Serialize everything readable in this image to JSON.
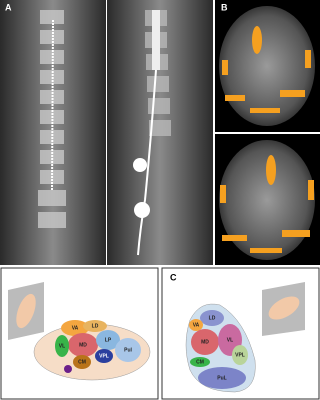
{
  "panels": [
    {
      "label": "A"
    },
    {
      "label": "B"
    },
    {
      "label": "C"
    }
  ],
  "diagrams": [
    {
      "labels": [
        "VA",
        "LD",
        "MD",
        "VL",
        "LP",
        "CM",
        "VPL",
        "Pul"
      ]
    },
    {
      "labels": [
        "LD",
        "VA",
        "MD",
        "VL",
        "VPL",
        "CM",
        "PuL"
      ]
    }
  ]
}
